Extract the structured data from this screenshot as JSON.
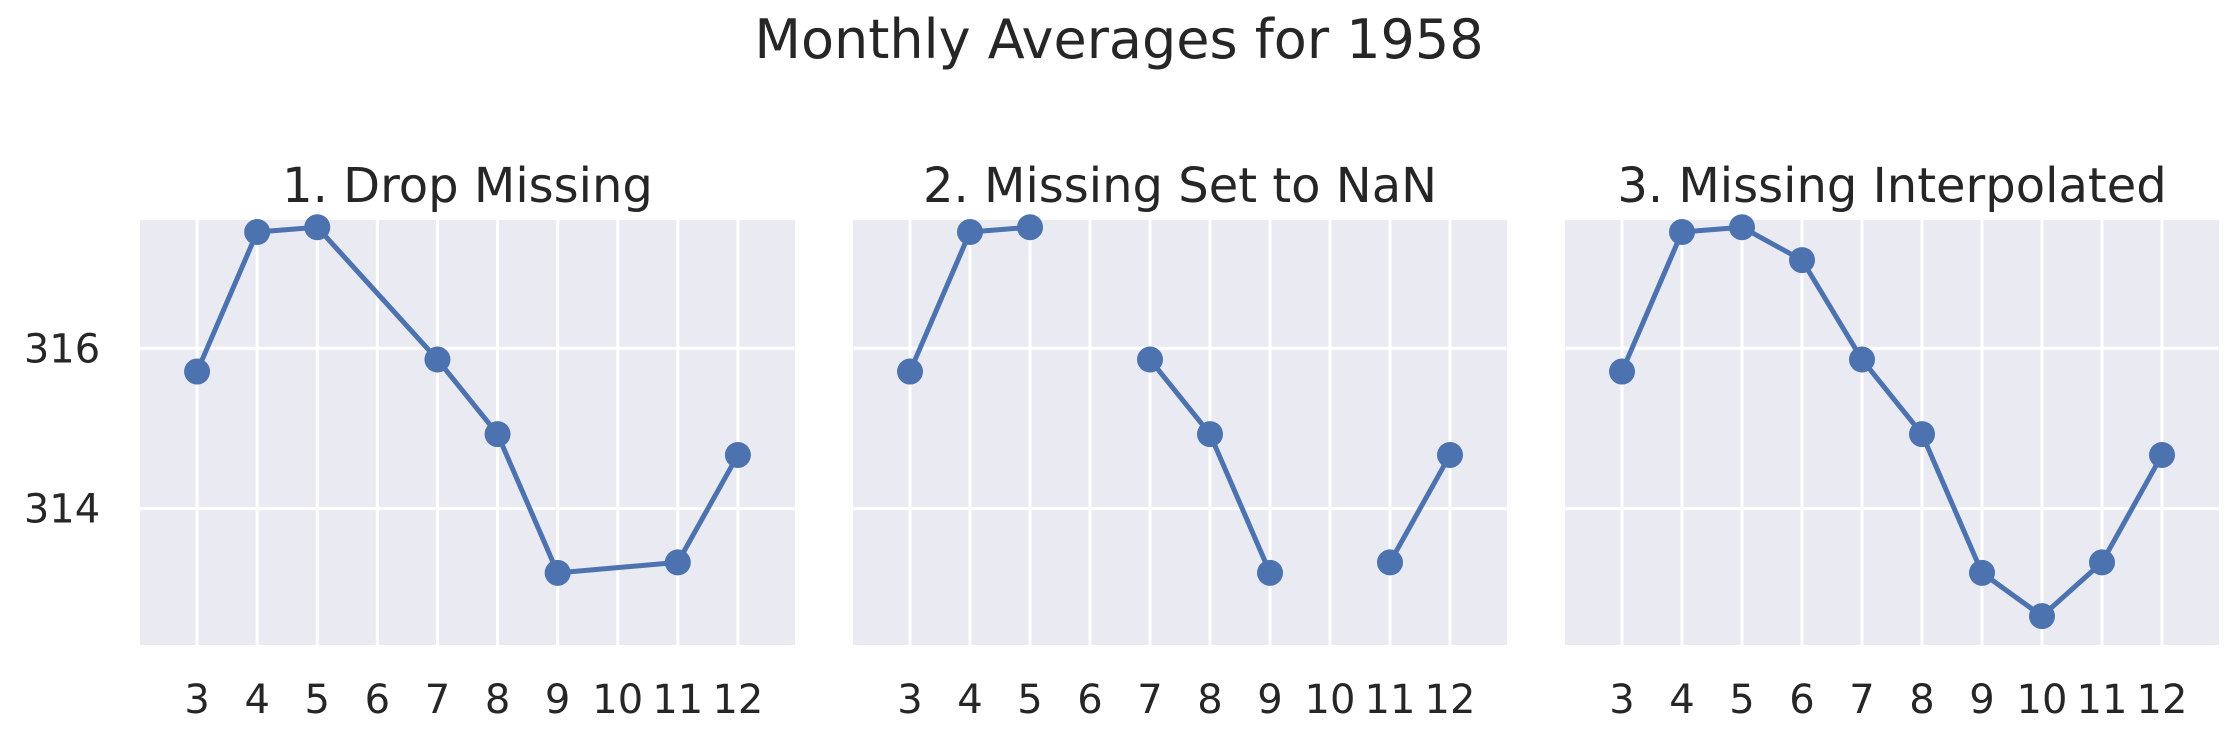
{
  "suptitle": "Monthly Averages for 1958",
  "colors": {
    "panel_bg": "#eaeaf2",
    "grid": "#ffffff",
    "series": "#4c72b0",
    "text": "#262626"
  },
  "chart_data": [
    {
      "type": "line",
      "title": "1. Drop Missing",
      "xlabel": "",
      "ylabel": "",
      "x_ticks": [
        3,
        4,
        5,
        6,
        7,
        8,
        9,
        10,
        11,
        12
      ],
      "y_ticks": [
        314,
        316
      ],
      "xlim": [
        2.05,
        12.95
      ],
      "ylim": [
        312.3,
        317.6
      ],
      "grid": true,
      "connect_gaps": true,
      "series": [
        {
          "x": [
            3,
            4,
            5,
            6,
            7,
            8,
            9,
            10,
            11,
            12
          ],
          "y": [
            315.71,
            317.45,
            317.51,
            null,
            315.86,
            314.93,
            313.2,
            null,
            313.33,
            314.67
          ]
        }
      ]
    },
    {
      "type": "line",
      "title": "2. Missing Set to NaN",
      "xlabel": "",
      "ylabel": "",
      "x_ticks": [
        3,
        4,
        5,
        6,
        7,
        8,
        9,
        10,
        11,
        12
      ],
      "y_ticks": [
        314,
        316
      ],
      "xlim": [
        2.05,
        12.95
      ],
      "ylim": [
        312.3,
        317.6
      ],
      "grid": true,
      "connect_gaps": false,
      "series": [
        {
          "x": [
            3,
            4,
            5,
            6,
            7,
            8,
            9,
            10,
            11,
            12
          ],
          "y": [
            315.71,
            317.45,
            317.51,
            null,
            315.86,
            314.93,
            313.2,
            null,
            313.33,
            314.67
          ]
        }
      ]
    },
    {
      "type": "line",
      "title": "3. Missing Interpolated",
      "xlabel": "",
      "ylabel": "",
      "x_ticks": [
        3,
        4,
        5,
        6,
        7,
        8,
        9,
        10,
        11,
        12
      ],
      "y_ticks": [
        314,
        316
      ],
      "xlim": [
        2.05,
        12.95
      ],
      "ylim": [
        312.3,
        317.6
      ],
      "grid": true,
      "connect_gaps": true,
      "series": [
        {
          "x": [
            3,
            4,
            5,
            6,
            7,
            8,
            9,
            10,
            11,
            12
          ],
          "y": [
            315.71,
            317.45,
            317.51,
            317.1,
            315.86,
            314.93,
            313.2,
            312.66,
            313.33,
            314.67
          ]
        }
      ]
    }
  ]
}
